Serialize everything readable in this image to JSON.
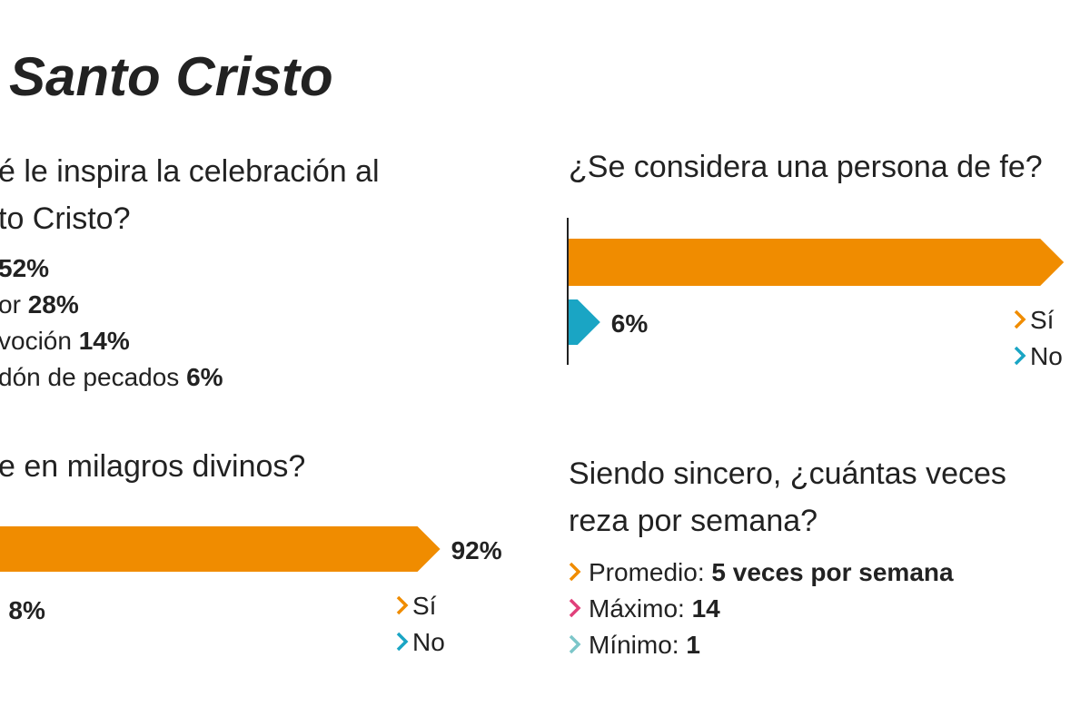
{
  "title": "Santo Cristo",
  "inspiration": {
    "question_lines": [
      "é le inspira la celebración al",
      "to Cristo?"
    ],
    "items": [
      {
        "label": "",
        "value": "52%"
      },
      {
        "label": "or",
        "value": "28%"
      },
      {
        "label": "voción",
        "value": "14%"
      },
      {
        "label": "dón de pecados",
        "value": "6%"
      }
    ]
  },
  "miracles": {
    "type": "bar",
    "question": "e en milagros divinos?",
    "categories": [
      "Sí",
      "No"
    ],
    "values": [
      92,
      8
    ],
    "value_labels": [
      "92%",
      "8%"
    ],
    "colors": [
      "#f08c00",
      "#1aa5c4"
    ]
  },
  "faith": {
    "type": "bar",
    "question": "¿Se considera una persona de fe?",
    "categories": [
      "Sí",
      "No"
    ],
    "values": [
      94,
      6
    ],
    "value_labels": [
      null,
      "6%"
    ],
    "colors": [
      "#f08c00",
      "#1aa5c4"
    ]
  },
  "prayer": {
    "question_lines": [
      "Siendo sincero, ¿cuántas veces",
      "reza por semana?"
    ],
    "items": [
      {
        "label": "Promedio:",
        "value": "5 veces por semana",
        "color": "#f08c00"
      },
      {
        "label": "Máximo:",
        "value": "14",
        "color": "#e0407a"
      },
      {
        "label": "Mínimo:",
        "value": "1",
        "color": "#7cc6c9"
      }
    ]
  }
}
